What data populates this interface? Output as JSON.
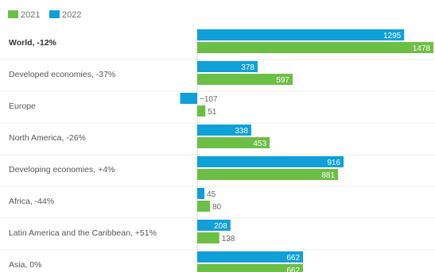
{
  "chart_data": {
    "type": "bar",
    "orientation": "horizontal",
    "title": "",
    "xlabel": "",
    "ylabel": "",
    "grid": true,
    "legend_position": "top-left",
    "categories": [
      "World, -12%",
      "Developed economies, -37%",
      "Europe",
      "North America, -26%",
      "Developing economies, +4%",
      "Africa, -44%",
      "Latin America and the Caribbean, +51%",
      "Asia, 0%"
    ],
    "bold_categories": [
      "World, -12%"
    ],
    "series": [
      {
        "name": "2021",
        "color": "#6cbf45",
        "values": [
          1478,
          597,
          51,
          453,
          881,
          80,
          138,
          662
        ]
      },
      {
        "name": "2022",
        "color": "#0fa0d8",
        "values": [
          1295,
          378,
          -107,
          338,
          916,
          45,
          208,
          662
        ]
      }
    ],
    "value_labels": {
      "2021": [
        "1478",
        "597",
        "51",
        "453",
        "881",
        "80",
        "138",
        "662"
      ],
      "2022": [
        "1295",
        "378",
        "−107",
        "338",
        "916",
        "45",
        "208",
        "662"
      ]
    },
    "xlim": [
      -130,
      1478
    ]
  }
}
